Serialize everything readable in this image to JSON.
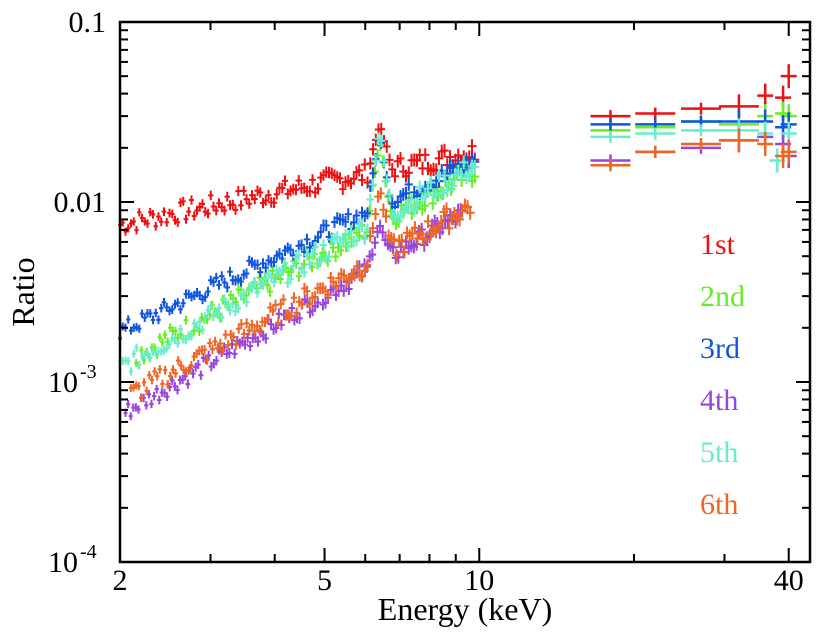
{
  "chart_data": {
    "type": "scatter",
    "title": "",
    "xlabel": "Energy (keV)",
    "ylabel": "Ratio",
    "xscale": "log",
    "yscale": "log",
    "xlim": [
      2,
      44
    ],
    "ylim": [
      0.0001,
      0.1
    ],
    "x_ticks": [
      {
        "value": 2,
        "label": "2"
      },
      {
        "value": 5,
        "label": "5"
      },
      {
        "value": 10,
        "label": "10"
      },
      {
        "value": 40,
        "label": "40"
      }
    ],
    "y_ticks": [
      {
        "value": 0.1,
        "label": "0.1",
        "sup": ""
      },
      {
        "value": 0.01,
        "label": "0.01",
        "sup": ""
      },
      {
        "value": 0.001,
        "label": "10",
        "sup": "-3"
      },
      {
        "value": 0.0001,
        "label": "10",
        "sup": "-4"
      }
    ],
    "legend_position": "right",
    "series": [
      {
        "name": "1st",
        "color": "#ee1111",
        "low": {
          "start": 2.0,
          "end": 9.8,
          "y_start": 0.0075,
          "y_end": 0.019,
          "line_peak": 0.027,
          "scatter": 0.12
        },
        "high": [
          [
            18,
            0.03
          ],
          [
            22,
            0.031
          ],
          [
            27,
            0.033
          ],
          [
            32,
            0.034
          ],
          [
            36,
            0.039
          ],
          [
            39,
            0.038
          ],
          [
            40,
            0.05
          ]
        ]
      },
      {
        "name": "2nd",
        "color": "#66ee22",
        "low": {
          "start": 2.15,
          "end": 9.8,
          "y_start": 0.0014,
          "y_end": 0.015,
          "line_peak": 0.022,
          "scatter": 0.12
        },
        "high": [
          [
            18,
            0.025
          ],
          [
            22,
            0.026
          ],
          [
            27,
            0.028
          ],
          [
            32,
            0.027
          ],
          [
            36,
            0.03
          ],
          [
            39,
            0.031
          ],
          [
            40,
            0.03
          ]
        ]
      },
      {
        "name": "3rd",
        "color": "#1155dd",
        "low": {
          "start": 2.0,
          "end": 9.8,
          "y_start": 0.0019,
          "y_end": 0.017,
          "line_peak": 0.024,
          "scatter": 0.1
        },
        "high": [
          [
            18,
            0.027
          ],
          [
            22,
            0.027
          ],
          [
            27,
            0.028
          ],
          [
            32,
            0.028
          ],
          [
            36,
            0.028
          ],
          [
            39,
            0.026
          ],
          [
            40,
            0.027
          ]
        ]
      },
      {
        "name": "4th",
        "color": "#9944dd",
        "low": {
          "start": 2.05,
          "end": 9.2,
          "y_start": 0.00068,
          "y_end": 0.0085,
          "line_peak": 0.0075,
          "scatter": 0.1
        },
        "high": [
          [
            18,
            0.017
          ],
          [
            22,
            0.019
          ],
          [
            27,
            0.02
          ],
          [
            32,
            0.022
          ],
          [
            36,
            0.023
          ],
          [
            39,
            0.021
          ],
          [
            40,
            0.018
          ]
        ]
      },
      {
        "name": "5th",
        "color": "#66eecc",
        "low": {
          "start": 2.0,
          "end": 9.8,
          "y_start": 0.0012,
          "y_end": 0.016,
          "line_peak": 0.025,
          "scatter": 0.12
        },
        "high": [
          [
            18,
            0.023
          ],
          [
            22,
            0.024
          ],
          [
            27,
            0.025
          ],
          [
            32,
            0.025
          ],
          [
            36,
            0.024
          ],
          [
            38,
            0.017
          ],
          [
            40,
            0.024
          ]
        ]
      },
      {
        "name": "6th",
        "color": "#ee6622",
        "low": {
          "start": 2.1,
          "end": 9.6,
          "y_start": 0.00085,
          "y_end": 0.0095,
          "line_peak": 0.012,
          "scatter": 0.12
        },
        "high": [
          [
            18,
            0.016
          ],
          [
            22,
            0.019
          ],
          [
            27,
            0.021
          ],
          [
            32,
            0.022
          ],
          [
            36,
            0.021
          ],
          [
            39,
            0.018
          ],
          [
            40,
            0.019
          ]
        ]
      }
    ]
  }
}
